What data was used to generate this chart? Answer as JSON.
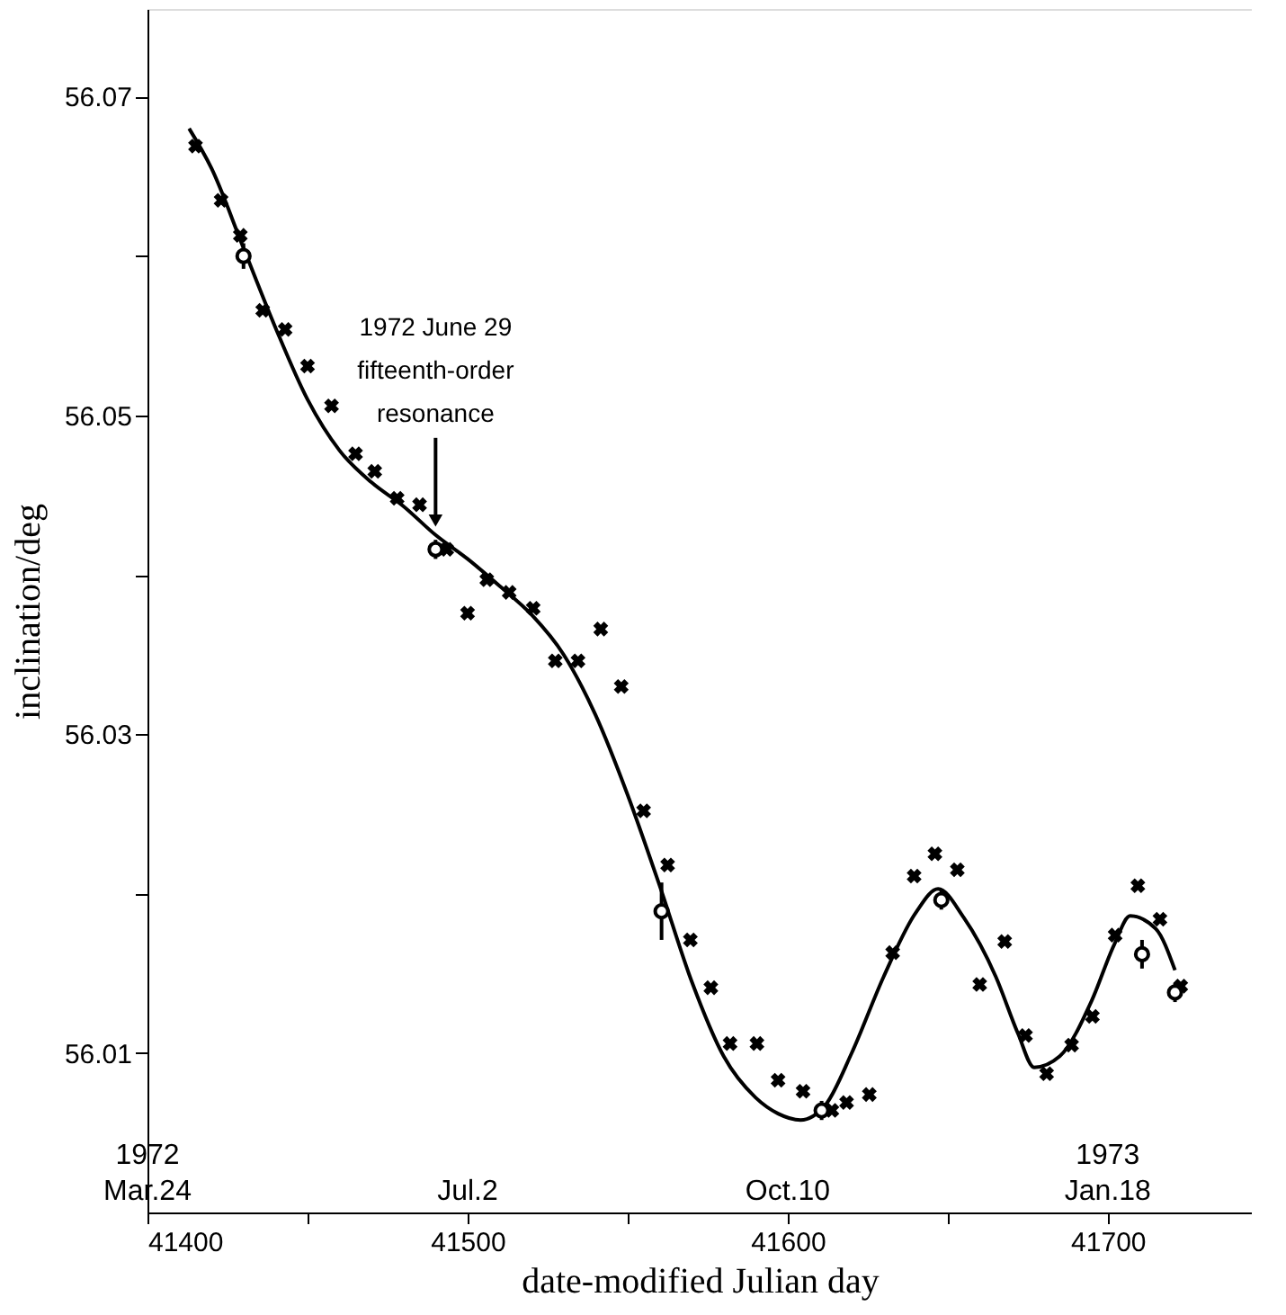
{
  "chart_data": {
    "type": "scatter",
    "xlabel": "date-modified Julian day",
    "ylabel": "inclination/deg",
    "xlim": [
      41400,
      41745
    ],
    "ylim": [
      56.0,
      56.0755
    ],
    "xticks": [
      41400,
      {
        "value": 41450,
        "label": null
      },
      41500,
      {
        "value": 41550,
        "label": null
      },
      41600,
      {
        "value": 41650,
        "label": null
      },
      41700
    ],
    "yticks": [
      {
        "value": 56.01,
        "label": "56.01"
      },
      {
        "value": 56.02,
        "label": null
      },
      {
        "value": 56.03,
        "label": "56.03"
      },
      {
        "value": 56.04,
        "label": null
      },
      {
        "value": 56.05,
        "label": "56.05"
      },
      {
        "value": 56.06,
        "label": null
      },
      {
        "value": 56.07,
        "label": "56.07"
      }
    ],
    "x2lim": [
      "1972-03-24",
      "1973-03-04"
    ],
    "x2ticks": [
      {
        "value": "1972-03-24",
        "label": "1972\nMar.24"
      },
      {
        "value": "1972-07-02",
        "label": "Jul.2"
      },
      {
        "value": "1972-10-10",
        "label": "Oct.10"
      },
      {
        "value": "1973-01-18",
        "label": "1973\nJan.18"
      }
    ],
    "grid": false,
    "annotations": [
      {
        "text": "1972 June 29\nfifteenth-order\nresonance",
        "x": 41490,
        "y": 56.0425
      }
    ],
    "series": [
      {
        "type": "line",
        "color": "#000000",
        "marker": "none",
        "line_style": "solid",
        "x": [
          41413,
          41420,
          41430,
          41440,
          41450,
          41460,
          41470,
          41480,
          41490,
          41500,
          41510,
          41520,
          41530,
          41540,
          41550,
          41560,
          41570,
          41580,
          41590,
          41597,
          41604,
          41612,
          41620,
          41630,
          41640,
          41647,
          41655,
          41665,
          41672,
          41677,
          41685,
          41695,
          41702,
          41707,
          41715,
          41721
        ],
        "values": [
          56.068,
          56.0655,
          56.0605,
          56.0555,
          56.051,
          56.0478,
          56.0458,
          56.0443,
          56.0425,
          56.041,
          56.0393,
          56.0375,
          56.035,
          56.0312,
          56.0262,
          56.0205,
          56.0145,
          56.0098,
          56.0072,
          56.0062,
          56.0058,
          56.0068,
          56.01,
          56.0148,
          56.0188,
          56.0203,
          56.0185,
          56.0148,
          56.0112,
          56.0091,
          56.0098,
          56.0133,
          56.0168,
          56.0186,
          56.0178,
          56.0152
        ]
      },
      {
        "color": "#000000",
        "marker": "cross",
        "x": [
          41415,
          41423,
          41429,
          41436,
          41443,
          41450,
          41457.5,
          41465,
          41471,
          41478,
          41485,
          41493.5,
          41500,
          41506,
          41513,
          41520.5,
          41527.4,
          41534.5,
          41541.6,
          41548,
          41555,
          41562.5,
          41569.6,
          41576,
          41582,
          41590.4,
          41597,
          41604.8,
          41613.8,
          41618.4,
          41625.5,
          41632.8,
          41639.5,
          41646,
          41653,
          41660,
          41667.8,
          41674.3,
          41680.9,
          41688.7,
          41695.2,
          41702.3,
          41709.4,
          41716.3,
          41722.8
        ],
        "values": [
          56.0669,
          56.0635,
          56.0613,
          56.0566,
          56.0554,
          56.0531,
          56.0506,
          56.0476,
          56.0465,
          56.0448,
          56.0444,
          56.0416,
          56.0376,
          56.0397,
          56.0389,
          56.0379,
          56.0346,
          56.0346,
          56.0366,
          56.033,
          56.0252,
          56.0218,
          56.0171,
          56.0141,
          56.0106,
          56.0106,
          56.0083,
          56.0076,
          56.0064,
          56.0069,
          56.0074,
          56.0163,
          56.0211,
          56.0225,
          56.0215,
          56.0143,
          56.017,
          56.0111,
          56.0087,
          56.0105,
          56.0123,
          56.0174,
          56.0205,
          56.0184,
          56.0142
        ]
      },
      {
        "color": "#000000",
        "marker": "circle",
        "x": [
          41430,
          41490,
          41560.6,
          41610.6,
          41648,
          41710.7,
          41721
        ],
        "values": [
          56.06,
          56.0416,
          56.0189,
          56.0064,
          56.0196,
          56.0162,
          56.0138
        ],
        "errors": [
          0.0008,
          0.0006,
          0.0018,
          0.0006,
          0.0006,
          0.0009,
          0.0006
        ]
      }
    ]
  }
}
